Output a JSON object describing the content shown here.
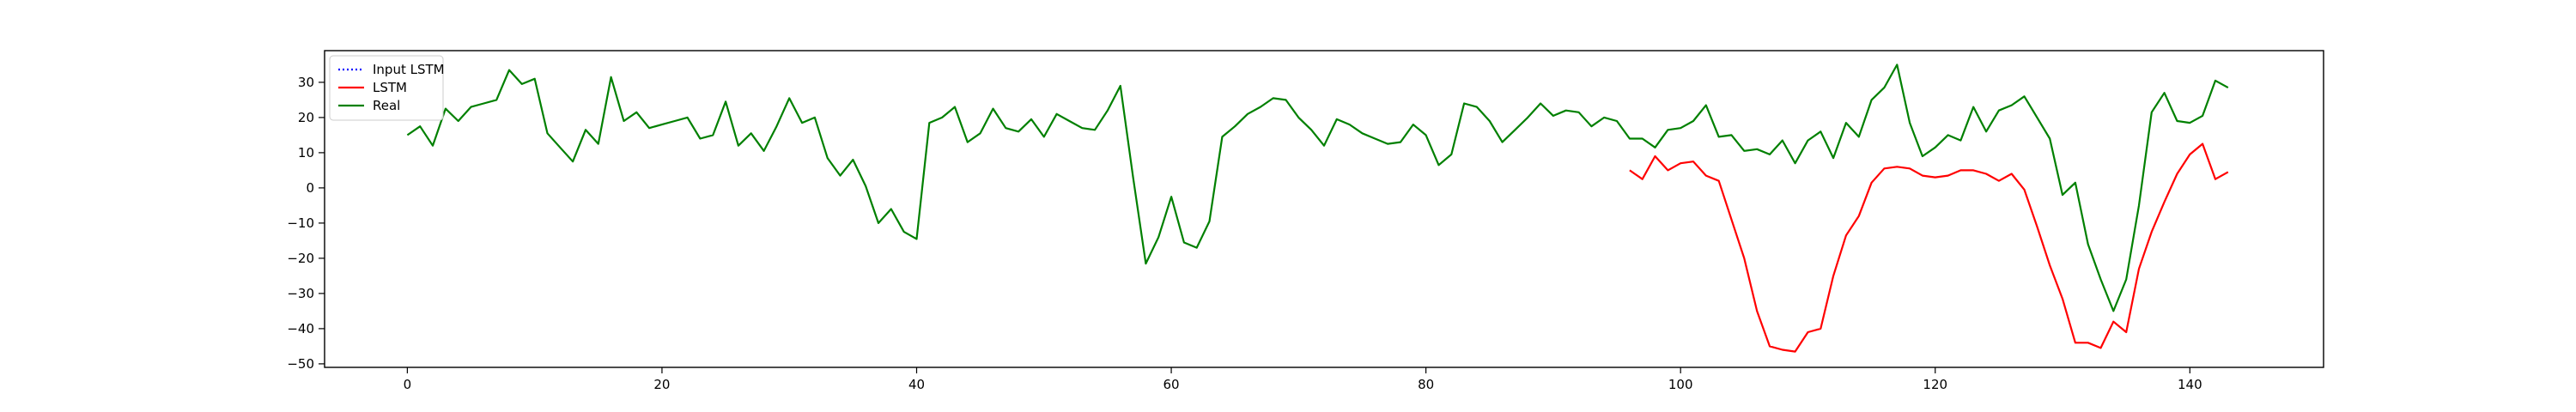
{
  "chart_data": {
    "type": "line",
    "title": "",
    "xlabel": "",
    "ylabel": "",
    "xlim": [
      -6.5,
      150.5
    ],
    "ylim": [
      -51,
      39
    ],
    "xticks": [
      0,
      20,
      40,
      60,
      80,
      100,
      120,
      140
    ],
    "yticks": [
      -50,
      -40,
      -30,
      -20,
      -10,
      0,
      10,
      20,
      30
    ],
    "grid": false,
    "legend_position": "top-left",
    "series": [
      {
        "name": "Input LSTM",
        "color": "#0000ff",
        "style": "dotted",
        "x_start": 0,
        "values": []
      },
      {
        "name": "LSTM",
        "color": "#ff0000",
        "style": "solid",
        "x_start": 96,
        "values": [
          5,
          2.5,
          9,
          5,
          7,
          7.5,
          3.5,
          2,
          -9,
          -20,
          -35,
          -45,
          -46,
          -46.5,
          -41,
          -40,
          -25,
          -13.5,
          -8,
          1.5,
          5.5,
          6,
          5.5,
          3.5,
          3,
          3.5,
          5,
          5,
          4,
          2,
          4,
          -0.5,
          -11,
          -22,
          -31.5,
          -44,
          -44,
          -45.5,
          -38,
          -41,
          -23,
          -12.5,
          -4,
          4,
          9.5,
          12.5,
          2.5,
          4.5
        ]
      },
      {
        "name": "Real",
        "color": "#008000",
        "style": "solid",
        "x_start": 0,
        "values": [
          15,
          17.5,
          12,
          22.5,
          19,
          23,
          24,
          25,
          33.5,
          29.5,
          31,
          15.5,
          11.5,
          7.5,
          16.5,
          12.5,
          31.5,
          19,
          21.5,
          17,
          18,
          19,
          20,
          14,
          15,
          24.5,
          12,
          15.5,
          10.5,
          17.5,
          25.5,
          18.5,
          20,
          8.5,
          3.5,
          8,
          0.5,
          -10,
          -6,
          -12.5,
          -14.5,
          18.5,
          20,
          23,
          13,
          15.5,
          22.5,
          17,
          16,
          19.5,
          14.5,
          21,
          19,
          17,
          16.5,
          22,
          29,
          3,
          -21.5,
          -14,
          -2.5,
          -15.5,
          -17,
          -9.5,
          14.5,
          17.5,
          21,
          23,
          25.5,
          25,
          20,
          16.5,
          12,
          19.5,
          18,
          15.5,
          14,
          12.5,
          13,
          18,
          15,
          6.5,
          9.5,
          24,
          23,
          19,
          13,
          16.5,
          20,
          24,
          20.5,
          22,
          21.5,
          17.5,
          20,
          19,
          14,
          14,
          11.5,
          16.5,
          17,
          19,
          23.5,
          14.5,
          15,
          10.5,
          11,
          9.5,
          13.5,
          7,
          13.5,
          16,
          8.5,
          18.5,
          14.5,
          25,
          28.5,
          35,
          18.5,
          9,
          11.5,
          15,
          13.5,
          23,
          16,
          22,
          23.5,
          26,
          20,
          14,
          -2,
          1.5,
          -16,
          -26,
          -35,
          -26,
          -5,
          21.5,
          27,
          19,
          18.5,
          20.5,
          30.5,
          28.5
        ]
      }
    ]
  }
}
